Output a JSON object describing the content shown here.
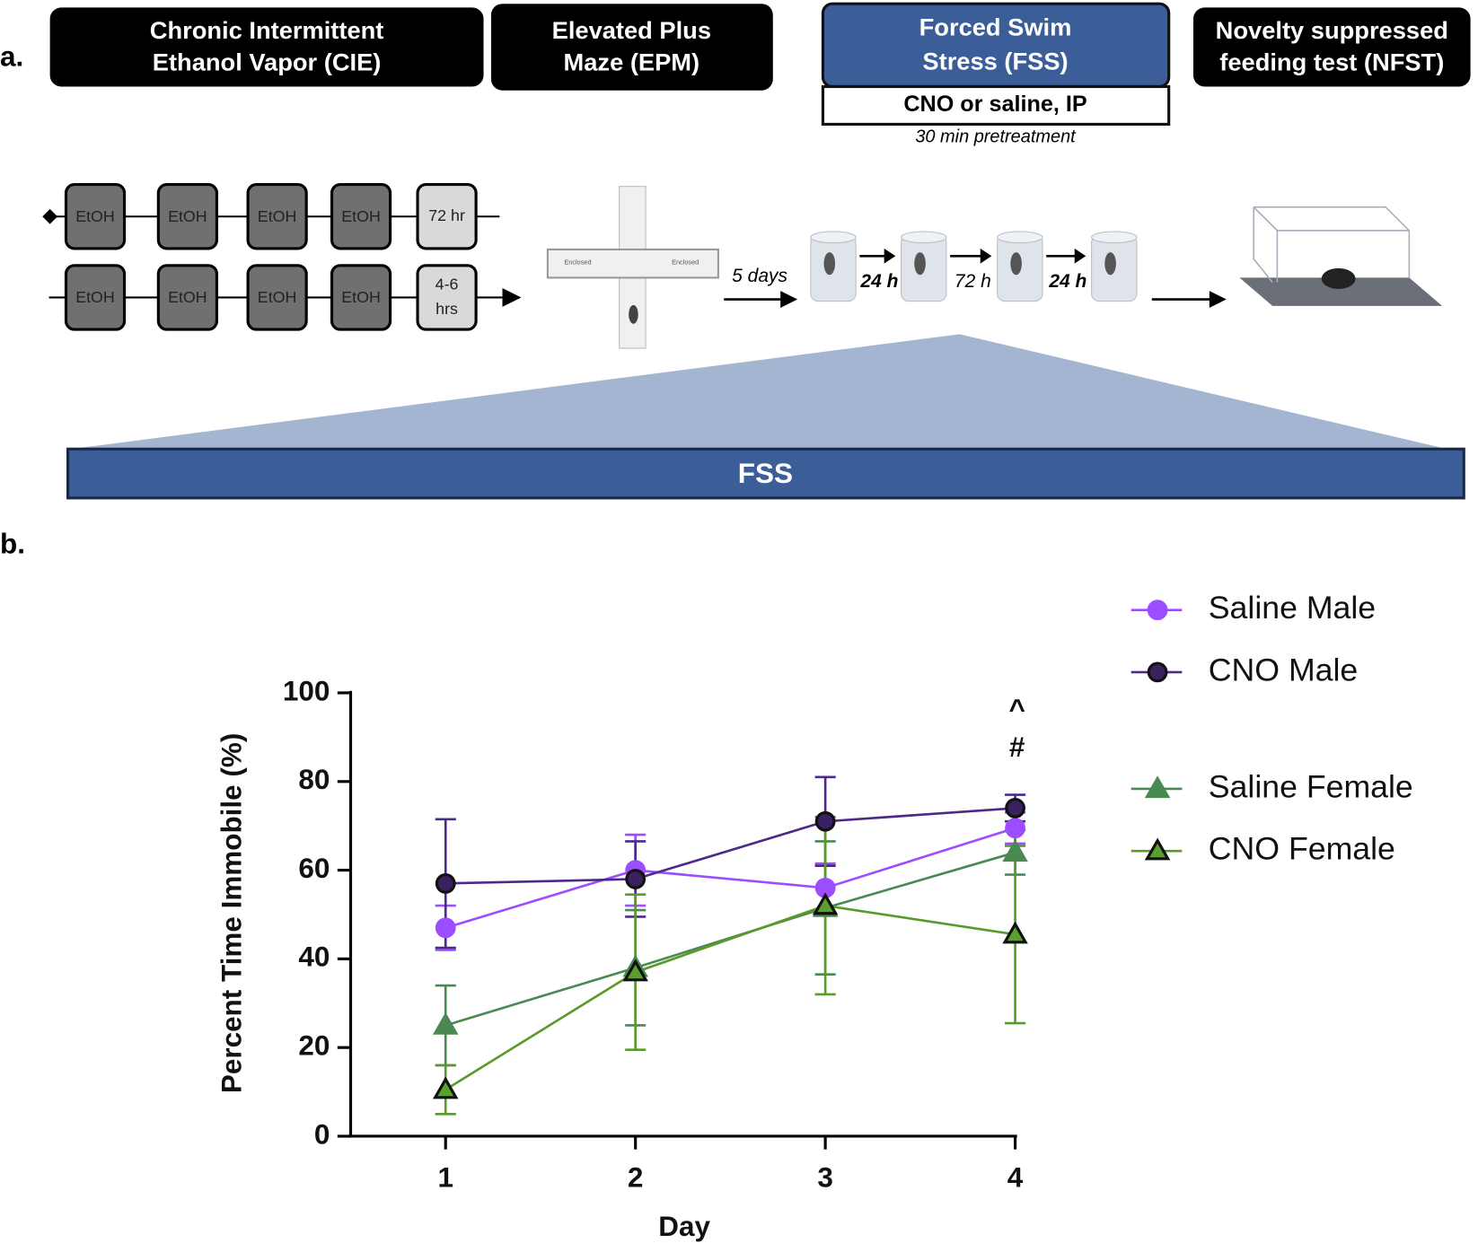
{
  "panel_a": {
    "label": "a.",
    "stages": [
      {
        "lines": [
          "Chronic Intermittent",
          "Ethanol Vapor (CIE)"
        ]
      },
      {
        "lines": [
          "Elevated Plus",
          "Maze (EPM)"
        ]
      },
      {
        "lines": [
          "Forced Swim",
          "Stress (FSS)"
        ]
      },
      {
        "lines": [
          "Novelty suppressed",
          "feeding test (NFST)"
        ]
      }
    ],
    "treatment": "CNO or saline, IP",
    "pretreatment": "30 min pretreatment",
    "timeline": {
      "row1": [
        "EtOH",
        "EtOH",
        "EtOH",
        "EtOH"
      ],
      "row1_end": [
        "72 hr"
      ],
      "row2": [
        "EtOH",
        "EtOH",
        "EtOH",
        "EtOH"
      ],
      "row2_end": [
        "4-6",
        "hrs"
      ]
    },
    "maze_labels": [
      "Enclosed",
      "Enclosed"
    ],
    "interval_first": "5 days",
    "intervals": [
      "24 h",
      "72 h",
      "24 h"
    ],
    "expanded": "FSS"
  },
  "panel_b_label": "b.",
  "chart_data": {
    "type": "line",
    "xlabel": "Day",
    "ylabel": "Percent Time Immobile (%)",
    "x": [
      1,
      2,
      3,
      4
    ],
    "xlim": [
      0.5,
      4
    ],
    "xticks": [
      1,
      2,
      3,
      4
    ],
    "ylim": [
      0,
      100
    ],
    "yticks": [
      0,
      20,
      40,
      60,
      80,
      100
    ],
    "annotations": [
      "^",
      "#"
    ],
    "series": [
      {
        "name": "Saline Male",
        "color": "#9b4dff",
        "marker": "circle",
        "marker_fill": "#9b4dff",
        "marker_edge": "#9b4dff",
        "values": [
          47,
          60,
          56,
          69.5
        ],
        "errors": [
          5,
          8,
          5.5,
          3.5
        ]
      },
      {
        "name": "CNO Male",
        "color": "#4b2a8a",
        "marker": "circle",
        "marker_fill": "#3a2160",
        "marker_edge": "#111111",
        "values": [
          57,
          58,
          71,
          74
        ],
        "errors": [
          14.5,
          8.5,
          10,
          3
        ]
      },
      {
        "name": "Saline Female",
        "color": "#4a8a52",
        "marker": "triangle",
        "marker_fill": "#4a8a52",
        "marker_edge": "#4a8a52",
        "values": [
          25,
          38,
          51.5,
          64
        ],
        "errors": [
          9,
          13,
          15,
          5
        ]
      },
      {
        "name": "CNO Female",
        "color": "#5a9a2a",
        "marker": "triangle",
        "marker_fill": "#5aa02c",
        "marker_edge": "#111111",
        "values": [
          10.5,
          37,
          52,
          45.5
        ],
        "errors": [
          5.5,
          17.5,
          20,
          20
        ]
      }
    ]
  }
}
